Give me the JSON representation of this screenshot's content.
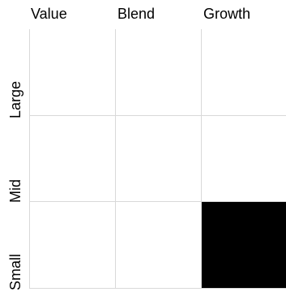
{
  "style_box": {
    "columns": [
      "Value",
      "Blend",
      "Growth"
    ],
    "rows": [
      "Large",
      "Mid",
      "Small"
    ],
    "selected": {
      "row": "Small",
      "column": "Growth"
    },
    "colors": {
      "selected_fill": "#000000",
      "grid_line": "#d9d9d9",
      "background": "#ffffff"
    }
  }
}
